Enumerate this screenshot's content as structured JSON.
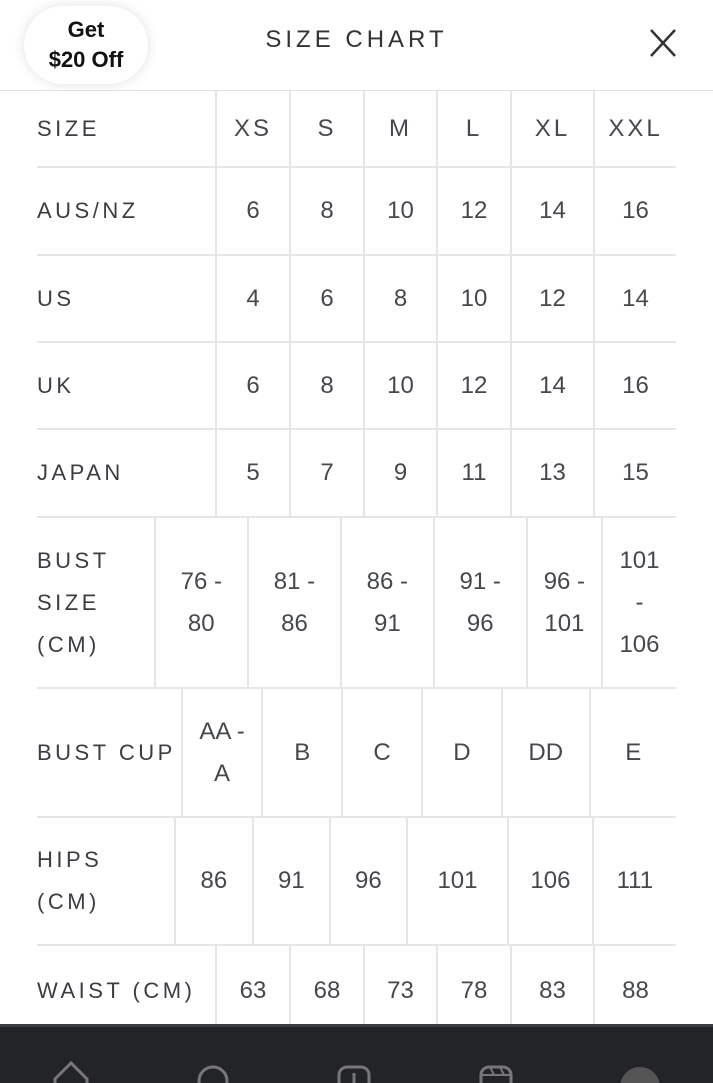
{
  "header": {
    "title": "SIZE CHART",
    "close_icon": "close-icon"
  },
  "table": {
    "columns": [
      "SIZE",
      "XS",
      "S",
      "M",
      "L",
      "XL",
      "XXL"
    ],
    "rows": [
      {
        "label": "AUS/NZ",
        "values": [
          "6",
          "8",
          "10",
          "12",
          "14",
          "16"
        ]
      },
      {
        "label": "US",
        "values": [
          "4",
          "6",
          "8",
          "10",
          "12",
          "14"
        ]
      },
      {
        "label": "UK",
        "values": [
          "6",
          "8",
          "10",
          "12",
          "14",
          "16"
        ]
      },
      {
        "label": "JAPAN",
        "values": [
          "5",
          "7",
          "9",
          "11",
          "13",
          "15"
        ]
      },
      {
        "label": "BUST SIZE (CM)",
        "values": [
          "76 - 80",
          "81 - 86",
          "86 - 91",
          "91 - 96",
          "96 - 101",
          "101 - 106"
        ]
      },
      {
        "label": "BUST CUP",
        "values": [
          "AA - A",
          "B",
          "C",
          "D",
          "DD",
          "E"
        ]
      },
      {
        "label": "HIPS (CM)",
        "values": [
          "86",
          "91",
          "96",
          "101",
          "106",
          "111"
        ]
      },
      {
        "label": "WAIST (CM)",
        "values": [
          "63",
          "68",
          "73",
          "78",
          "83",
          "88"
        ]
      }
    ]
  },
  "promo": {
    "line1": "Get",
    "line2": "$20 Off"
  },
  "bottom_nav": {
    "icons": [
      "home-icon",
      "search-icon",
      "create-icon",
      "reels-icon",
      "profile-icon"
    ]
  }
}
